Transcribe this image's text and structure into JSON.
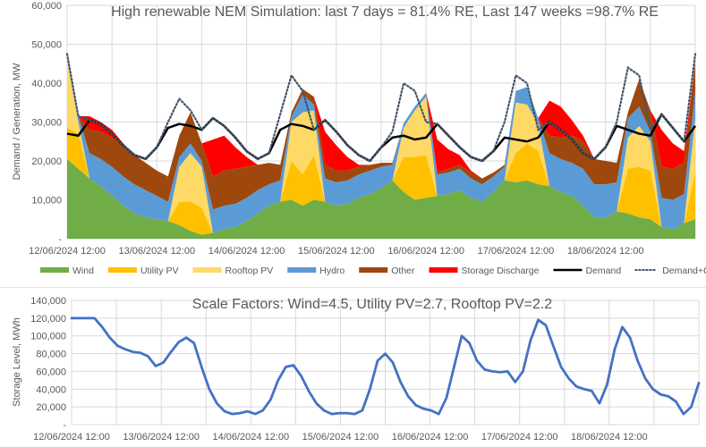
{
  "chart_data": [
    {
      "type": "area",
      "stacked": true,
      "title": "High renewable NEM Simulation: last 7 days = 81.4% RE, Last 147 weeks =98.7% RE",
      "xlabel": "",
      "ylabel": "Demand / Generation, MW",
      "ylim": [
        0,
        60000
      ],
      "yticks": [
        0,
        10000,
        20000,
        30000,
        40000,
        50000,
        60000
      ],
      "ytick_labels": [
        "-",
        "10,000",
        "20,000",
        "30,000",
        "40,000",
        "50,000",
        "60,000"
      ],
      "x_start": "12/06/2024 12:00",
      "x_step_hours": 3,
      "x_tick_labels": [
        "12/06/2024 12:00",
        "13/06/2024 12:00",
        "14/06/2024 12:00",
        "15/06/2024 12:00",
        "16/06/2024 12:00",
        "17/06/2024 12:00",
        "18/06/2024 12:00"
      ],
      "grid": true,
      "legend_position": "bottom",
      "series": [
        {
          "name": "Wind",
          "color": "#70AD47",
          "kind": "area",
          "values": [
            20500,
            18000,
            15500,
            13500,
            11000,
            8500,
            6500,
            5500,
            5000,
            4500,
            3500,
            2000,
            1000,
            1500,
            2500,
            3000,
            4500,
            6500,
            8500,
            9500,
            10000,
            8500,
            10000,
            9500,
            8500,
            9000,
            10500,
            11500,
            13000,
            15000,
            12000,
            10000,
            10500,
            11000,
            11500,
            12500,
            10500,
            9500,
            12000,
            15000,
            14500,
            15000,
            14000,
            13500,
            12000,
            11000,
            8500,
            5500,
            5500,
            7000,
            6500,
            5500,
            5000,
            3000,
            2500,
            4000,
            5000
          ]
        },
        {
          "name": "Utility PV",
          "color": "#FFC000",
          "kind": "area",
          "values": [
            8000,
            9000,
            0,
            0,
            0,
            0,
            0,
            0,
            0,
            0,
            6000,
            7500,
            7000,
            0,
            0,
            0,
            0,
            0,
            0,
            0,
            10000,
            8000,
            11500,
            0,
            0,
            0,
            0,
            0,
            0,
            0,
            9000,
            11000,
            11000,
            0,
            0,
            0,
            0,
            0,
            0,
            0,
            7500,
            9500,
            8500,
            0,
            0,
            0,
            0,
            0,
            0,
            0,
            11500,
            13000,
            12500,
            0,
            0,
            0,
            12000
          ]
        },
        {
          "name": "Rooftop PV",
          "color": "#FFD966",
          "kind": "area",
          "values": [
            18000,
            3000,
            0,
            0,
            0,
            0,
            0,
            0,
            0,
            0,
            9000,
            12500,
            10500,
            0,
            0,
            0,
            0,
            0,
            0,
            0,
            10000,
            16000,
            11500,
            0,
            0,
            0,
            0,
            0,
            0,
            0,
            7500,
            12000,
            15000,
            0,
            0,
            0,
            0,
            0,
            0,
            0,
            13000,
            10000,
            7000,
            0,
            0,
            0,
            0,
            0,
            0,
            0,
            8000,
            10500,
            7500,
            0,
            0,
            0,
            14000
          ]
        },
        {
          "name": "Hydro",
          "color": "#5B9BD5",
          "kind": "area",
          "values": [
            1500,
            1500,
            6500,
            7000,
            7500,
            7500,
            7500,
            7000,
            6000,
            5000,
            2500,
            2500,
            1500,
            6000,
            6000,
            6000,
            6000,
            6000,
            5500,
            5500,
            1500,
            4500,
            1500,
            6000,
            6000,
            6000,
            6000,
            6000,
            5500,
            4000,
            1200,
            1000,
            1000,
            5500,
            5500,
            5500,
            5000,
            4500,
            4000,
            3500,
            3000,
            4500,
            1500,
            8500,
            8500,
            8500,
            9500,
            8500,
            8500,
            7500,
            5000,
            5000,
            2500,
            7500,
            7500,
            7500,
            7000
          ]
        },
        {
          "name": "Other",
          "color": "#9E480E",
          "kind": "area",
          "values": [
            0,
            0,
            6000,
            7000,
            7500,
            8000,
            7500,
            7000,
            6500,
            6500,
            5500,
            8000,
            4500,
            8500,
            9000,
            9000,
            8000,
            6500,
            5500,
            4000,
            1000,
            1500,
            2000,
            3500,
            3000,
            2500,
            2000,
            1500,
            1000,
            500,
            0,
            0,
            0,
            500,
            1000,
            1000,
            1500,
            1500,
            1000,
            500,
            0,
            0,
            0,
            4500,
            5500,
            7000,
            7000,
            6500,
            6000,
            5000,
            1500,
            7000,
            5500,
            8000,
            8000,
            8000,
            7500
          ]
        },
        {
          "name": "Storage Discharge",
          "color": "#FF0000",
          "kind": "area",
          "values": [
            0,
            0,
            3500,
            2500,
            2000,
            500,
            0,
            0,
            0,
            0,
            0,
            0,
            0,
            9500,
            9000,
            5500,
            2500,
            0,
            0,
            0,
            0,
            0,
            0,
            8500,
            6500,
            3500,
            500,
            0,
            0,
            0,
            0,
            0,
            0,
            8500,
            5000,
            2500,
            500,
            0,
            0,
            0,
            0,
            0,
            0,
            9000,
            8000,
            4000,
            1500,
            0,
            0,
            0,
            0,
            0,
            0,
            9500,
            6500,
            3000,
            0
          ]
        },
        {
          "name": "Demand",
          "color": "#000000",
          "kind": "line",
          "values": [
            27000,
            26500,
            30500,
            29500,
            27000,
            24000,
            21500,
            20500,
            23500,
            28500,
            29500,
            29000,
            28000,
            31000,
            29000,
            26000,
            22500,
            20500,
            22000,
            28000,
            29500,
            29000,
            28000,
            30500,
            27500,
            24000,
            21500,
            20000,
            23500,
            26000,
            26500,
            25500,
            26000,
            29500,
            26500,
            23500,
            21000,
            20000,
            22500,
            26000,
            25500,
            25000,
            26000,
            30000,
            28000,
            25500,
            22000,
            20500,
            23500,
            29000,
            28000,
            27000,
            26500,
            32000,
            28500,
            25000,
            29000
          ]
        },
        {
          "name": "Demand+Charge",
          "color": "#44546A",
          "kind": "dotted",
          "values": [
            47500,
            31500,
            30500,
            29500,
            27000,
            24000,
            21500,
            20500,
            23500,
            30000,
            36000,
            33000,
            28000,
            31000,
            29000,
            26000,
            22500,
            20500,
            22000,
            32000,
            42000,
            38000,
            28000,
            30500,
            27500,
            24000,
            21500,
            20000,
            23500,
            27500,
            40000,
            38000,
            30000,
            29500,
            26500,
            23500,
            21000,
            20000,
            22500,
            30000,
            42000,
            40000,
            28000,
            30000,
            28000,
            25500,
            22000,
            20500,
            23500,
            30000,
            44000,
            42000,
            28000,
            32000,
            28500,
            25000,
            47500
          ]
        }
      ]
    },
    {
      "type": "line",
      "title": "Scale Factors: Wind=4.5, Utility PV=2.7, Rooftop PV=2.2",
      "xlabel": "",
      "ylabel": "Storage Level, MWh",
      "ylim": [
        0,
        140000
      ],
      "yticks": [
        0,
        20000,
        40000,
        60000,
        80000,
        100000,
        120000,
        140000
      ],
      "ytick_labels": [
        "-",
        "20,000",
        "40,000",
        "60,000",
        "80,000",
        "100,000",
        "120,000",
        "140,000"
      ],
      "x_start": "12/06/2024 12:00",
      "x_step_hours": 3,
      "x_tick_labels": [
        "12/06/2024 12:00",
        "13/06/2024 12:00",
        "14/06/2024 12:00",
        "15/06/2024 12:00",
        "16/06/2024 12:00",
        "17/06/2024 12:00",
        "18/06/2024 12:00"
      ],
      "grid": true,
      "series": [
        {
          "name": "Storage Level",
          "color": "#4472C4",
          "values": [
            120000,
            120000,
            120000,
            120000,
            110000,
            98000,
            89000,
            85000,
            82000,
            81000,
            77000,
            66000,
            70000,
            82000,
            93000,
            98000,
            92000,
            65000,
            40000,
            24000,
            15000,
            12000,
            13000,
            15000,
            12000,
            16000,
            28000,
            50000,
            65000,
            67000,
            55000,
            38000,
            24000,
            16000,
            12000,
            13000,
            13000,
            12000,
            16000,
            40000,
            72000,
            80000,
            70000,
            48000,
            32000,
            22000,
            18000,
            16000,
            12000,
            30000,
            65000,
            100000,
            92000,
            72000,
            62000,
            60000,
            59000,
            60000,
            48000,
            60000,
            95000,
            118000,
            112000,
            88000,
            65000,
            52000,
            43000,
            40000,
            38000,
            24000,
            45000,
            85000,
            110000,
            98000,
            72000,
            52000,
            40000,
            34000,
            32000,
            26000,
            12000,
            20000,
            47000
          ]
        }
      ]
    }
  ],
  "legend": {
    "items": [
      {
        "label": "Wind",
        "color": "#70AD47",
        "style": "bar"
      },
      {
        "label": "Utility PV",
        "color": "#FFC000",
        "style": "bar"
      },
      {
        "label": "Rooftop PV",
        "color": "#FFD966",
        "style": "bar"
      },
      {
        "label": "Hydro",
        "color": "#5B9BD5",
        "style": "bar"
      },
      {
        "label": "Other",
        "color": "#9E480E",
        "style": "bar"
      },
      {
        "label": "Storage Discharge",
        "color": "#FF0000",
        "style": "bar"
      },
      {
        "label": "Demand",
        "color": "#000000",
        "style": "line"
      },
      {
        "label": "Demand+Charge",
        "color": "#44546A",
        "style": "dotted"
      }
    ]
  }
}
